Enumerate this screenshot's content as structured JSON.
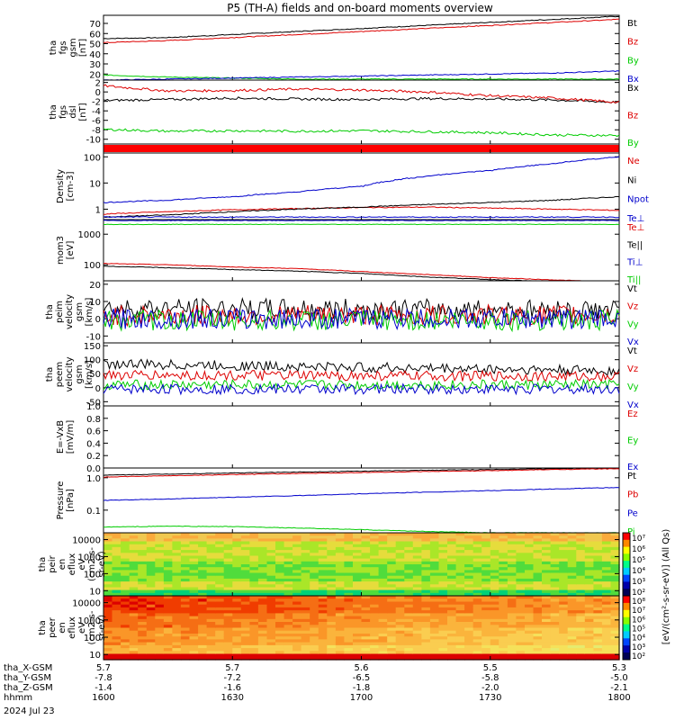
{
  "figure": {
    "title": "P5 (TH-A) fields and on-board moments overview",
    "date_label": "2024 Jul 23"
  },
  "chart_data": [
    {
      "type": "line",
      "panel": "fgs_gsm",
      "ylabel": [
        "tha",
        "fgs",
        "gsm",
        "[nT]"
      ],
      "yticks": [
        20,
        30,
        40,
        50,
        60,
        70
      ],
      "ylim": [
        14,
        78
      ],
      "x": [
        1600,
        1615,
        1630,
        1645,
        1700,
        1715,
        1730,
        1745,
        1800
      ],
      "series": [
        {
          "name": "Bt",
          "color": "#000000",
          "values": [
            55,
            56,
            59,
            62,
            65,
            68,
            71,
            74,
            77
          ]
        },
        {
          "name": "Bz",
          "color": "#dd0000",
          "values": [
            51,
            53,
            56,
            59,
            62,
            65,
            68,
            71,
            74
          ]
        },
        {
          "name": "By",
          "color": "#00cc00",
          "values": [
            19,
            17,
            16,
            15,
            15,
            15,
            15,
            15,
            15
          ]
        },
        {
          "name": "Bx",
          "color": "#0000cc",
          "values": [
            14,
            15,
            16,
            17,
            18,
            19,
            20,
            21,
            23
          ]
        }
      ]
    },
    {
      "type": "line",
      "panel": "fgs_dsl",
      "ylabel": [
        "tha",
        "fgs",
        "dsl",
        "[nT]"
      ],
      "yticks": [
        -10,
        -8,
        -6,
        -4,
        -2,
        0,
        2
      ],
      "ylim": [
        -11,
        2.5
      ],
      "x": [
        1600,
        1615,
        1630,
        1645,
        1700,
        1715,
        1730,
        1745,
        1800
      ],
      "series": [
        {
          "name": "Bx",
          "color": "#000000",
          "values": [
            -1.8,
            -1.6,
            -1.3,
            -1.5,
            -1.6,
            -1.4,
            -1.5,
            -1.7,
            -2.2
          ]
        },
        {
          "name": "Bz",
          "color": "#dd0000",
          "values": [
            1.3,
            0.2,
            0.3,
            0.6,
            0.4,
            0.0,
            -0.8,
            -1.3,
            -2.2
          ]
        },
        {
          "name": "By",
          "color": "#00cc00",
          "values": [
            -7.9,
            -8.3,
            -8.2,
            -8.3,
            -8.2,
            -8.4,
            -8.6,
            -9.1,
            -9.2
          ]
        }
      ]
    },
    {
      "type": "bar",
      "panel": "fgs_flag",
      "color": "#ff0000"
    },
    {
      "type": "line",
      "panel": "density",
      "ylabel": [
        "Density",
        "[cm-3]"
      ],
      "yticks": [
        1,
        10,
        100
      ],
      "ylim_log": [
        0.4,
        140
      ],
      "x": [
        1600,
        1615,
        1630,
        1645,
        1700,
        1715,
        1730,
        1745,
        1800
      ],
      "series": [
        {
          "name": "Ne",
          "color": "#dd0000",
          "values": [
            0.65,
            0.8,
            0.95,
            1.05,
            1.15,
            1.2,
            1.1,
            1.0,
            0.9
          ]
        },
        {
          "name": "Ni",
          "color": "#000000",
          "values": [
            0.5,
            0.6,
            0.8,
            1.0,
            1.2,
            1.5,
            1.8,
            2.2,
            3.0
          ]
        },
        {
          "name": "Npot",
          "color": "#0000cc",
          "values": [
            1.8,
            2.2,
            3.0,
            4.5,
            7.5,
            18,
            30,
            55,
            100
          ]
        },
        {
          "name": "Te⊥",
          "color": "#0000cc",
          "values": [
            0.5,
            0.5,
            0.5,
            0.5,
            0.5,
            0.5,
            0.5,
            0.5,
            0.5
          ]
        }
      ]
    },
    {
      "type": "line",
      "panel": "temperature",
      "ylabel": [
        "mom3",
        "[eV]"
      ],
      "yticks": [
        100,
        1000
      ],
      "ylim_log": [
        30,
        3000
      ],
      "x": [
        1600,
        1615,
        1630,
        1645,
        1700,
        1715,
        1730,
        1745,
        1800
      ],
      "series": [
        {
          "name": "Te⊥",
          "color": "#dd0000",
          "values": [
            110,
            100,
            85,
            75,
            60,
            48,
            38,
            32,
            27
          ]
        },
        {
          "name": "Te||",
          "color": "#000000",
          "values": [
            90,
            80,
            70,
            62,
            52,
            40,
            33,
            28,
            24
          ]
        },
        {
          "name": "Ti⊥",
          "color": "#0000cc",
          "values": [
            2800,
            2800,
            2800,
            2800,
            2800,
            2800,
            2800,
            2800,
            2800
          ]
        },
        {
          "name": "Ti||",
          "color": "#00cc00",
          "values": [
            2100,
            2100,
            2100,
            2100,
            2100,
            2100,
            2100,
            2100,
            2100
          ]
        }
      ]
    },
    {
      "type": "line",
      "panel": "peim_velocity",
      "ylabel": [
        "tha",
        "peim",
        "velocity",
        "gsm",
        "[km/s]"
      ],
      "yticks": [
        -10,
        0,
        10,
        20
      ],
      "ylim": [
        -14,
        22
      ],
      "x": [
        1600,
        1800
      ],
      "series": [
        {
          "name": "Vt",
          "color": "#000000",
          "values": [
            6,
            5
          ]
        },
        {
          "name": "Vz",
          "color": "#dd0000",
          "values": [
            2,
            2
          ]
        },
        {
          "name": "Vy",
          "color": "#00cc00",
          "values": [
            -1,
            -1
          ]
        },
        {
          "name": "Vx",
          "color": "#0000cc",
          "values": [
            0,
            0
          ]
        }
      ]
    },
    {
      "type": "line",
      "panel": "peem_velocity",
      "ylabel": [
        "tha",
        "peem",
        "velocity",
        "gsm",
        "[km/s]"
      ],
      "yticks": [
        -50,
        0,
        50,
        100,
        150
      ],
      "ylim": [
        -65,
        160
      ],
      "x": [
        1600,
        1800
      ],
      "series": [
        {
          "name": "Vt",
          "color": "#000000",
          "values": [
            85,
            60
          ]
        },
        {
          "name": "Vz",
          "color": "#dd0000",
          "values": [
            45,
            40
          ]
        },
        {
          "name": "Vy",
          "color": "#00cc00",
          "values": [
            10,
            10
          ]
        },
        {
          "name": "Vx",
          "color": "#0000cc",
          "values": [
            -5,
            -5
          ]
        }
      ]
    },
    {
      "type": "line",
      "panel": "efield",
      "ylabel": [
        "E=-VxB",
        "[mV/m]"
      ],
      "yticks": [
        0.0,
        0.2,
        0.4,
        0.6,
        0.8,
        1.0
      ],
      "ylim": [
        0,
        1.0
      ],
      "series": [
        {
          "name": "Ez",
          "color": "#dd0000",
          "values": []
        },
        {
          "name": "Ey",
          "color": "#00cc00",
          "values": []
        },
        {
          "name": "Ex",
          "color": "#0000cc",
          "values": []
        }
      ]
    },
    {
      "type": "line",
      "panel": "pressure",
      "ylabel": [
        "Pressure",
        "[nPa]"
      ],
      "yticks": [
        0.1,
        1.0
      ],
      "ylim_log": [
        0.02,
        2
      ],
      "x": [
        1600,
        1615,
        1630,
        1645,
        1700,
        1715,
        1730,
        1745,
        1800
      ],
      "series": [
        {
          "name": "Pt",
          "color": "#000000",
          "values": [
            1.2,
            1.3,
            1.4,
            1.5,
            1.6,
            1.7,
            1.8,
            1.9,
            2.0
          ]
        },
        {
          "name": "Pb",
          "color": "#dd0000",
          "values": [
            1.05,
            1.15,
            1.25,
            1.35,
            1.45,
            1.55,
            1.65,
            1.8,
            1.9
          ]
        },
        {
          "name": "Pe",
          "color": "#0000cc",
          "values": [
            0.2,
            0.22,
            0.25,
            0.28,
            0.32,
            0.36,
            0.4,
            0.45,
            0.5
          ]
        },
        {
          "name": "Pi",
          "color": "#00cc00",
          "values": [
            0.03,
            0.032,
            0.031,
            0.028,
            0.025,
            0.022,
            0.02,
            0.02,
            0.02
          ]
        }
      ]
    },
    {
      "type": "heatmap",
      "panel": "peir_spec",
      "ylabel": [
        "tha",
        "peir",
        "en",
        "eflux",
        "eV",
        "(cm2-s-",
        "sr-eV)"
      ],
      "yticks": [
        10,
        100,
        1000,
        10000
      ],
      "ylim_log": [
        5,
        25000
      ],
      "colorbar_ticks": [
        "10⁷",
        "10⁶",
        "10⁵",
        "10⁴",
        "10³",
        "10²"
      ]
    },
    {
      "type": "heatmap",
      "panel": "peer_spec",
      "ylabel": [
        "tha",
        "peer",
        "en",
        "eflux",
        "eV",
        "(cm2-s-",
        "sr-eV)"
      ],
      "yticks": [
        10,
        100,
        1000,
        10000
      ],
      "ylim_log": [
        5,
        25000
      ],
      "colorbar_ticks": [
        "10⁸",
        "10⁷",
        "10⁶",
        "10⁵",
        "10⁴",
        "10³",
        "10²"
      ],
      "colorbar_label": "[eV/(cm²-s-sr-eV)] (All Qs)"
    }
  ],
  "xaxis": {
    "rows": [
      {
        "label": "tha_X-GSM",
        "values": [
          "5.7",
          "5.7",
          "5.6",
          "5.5",
          "5.3"
        ]
      },
      {
        "label": "tha_Y-GSM",
        "values": [
          "-7.8",
          "-7.2",
          "-6.5",
          "-5.8",
          "-5.0"
        ]
      },
      {
        "label": "tha_Z-GSM",
        "values": [
          "-1.4",
          "-1.6",
          "-1.8",
          "-2.0",
          "-2.1"
        ]
      },
      {
        "label": "hhmm",
        "values": [
          "1600",
          "1630",
          "1700",
          "1730",
          "1800"
        ]
      }
    ],
    "date": "2024 Jul 23"
  }
}
